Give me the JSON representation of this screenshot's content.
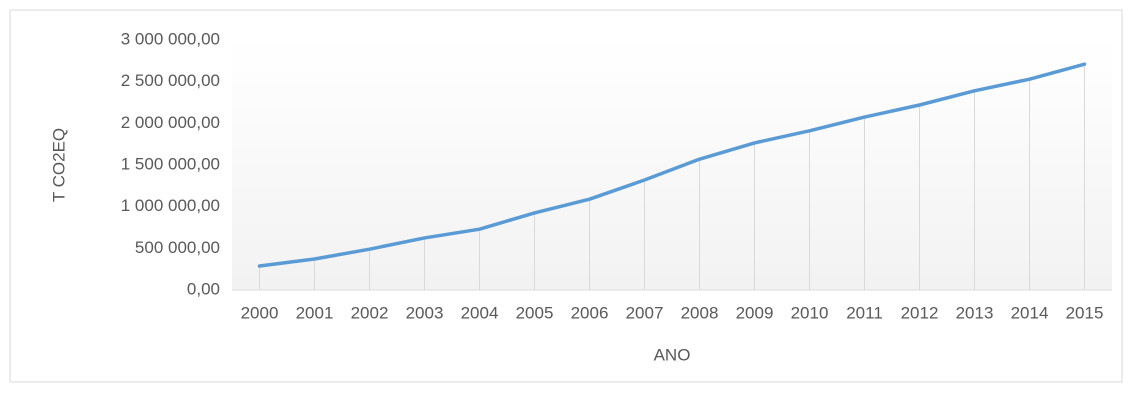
{
  "chart_data": {
    "type": "line",
    "xlabel": "ANO",
    "ylabel": "T CO2EQ",
    "categories": [
      "2000",
      "2001",
      "2002",
      "2003",
      "2004",
      "2005",
      "2006",
      "2007",
      "2008",
      "2009",
      "2010",
      "2011",
      "2012",
      "2013",
      "2014",
      "2015"
    ],
    "values": [
      288000,
      372000,
      490000,
      625000,
      730000,
      925000,
      1090000,
      1320000,
      1570000,
      1765000,
      1910000,
      2075000,
      2220000,
      2390000,
      2530000,
      2710000
    ],
    "color": "#5b9bd5",
    "ylim": [
      0,
      3000000
    ],
    "yticks": [
      {
        "value": 0,
        "label": "0,00"
      },
      {
        "value": 500000,
        "label": "500 000,00"
      },
      {
        "value": 1000000,
        "label": "1 000 000,00"
      },
      {
        "value": 1500000,
        "label": "1 500 000,00"
      },
      {
        "value": 2000000,
        "label": "2 000 000,00"
      },
      {
        "value": 2500000,
        "label": "2 500 000,00"
      },
      {
        "value": 3000000,
        "label": "3 000 000,00"
      }
    ],
    "drop_lines": true
  }
}
